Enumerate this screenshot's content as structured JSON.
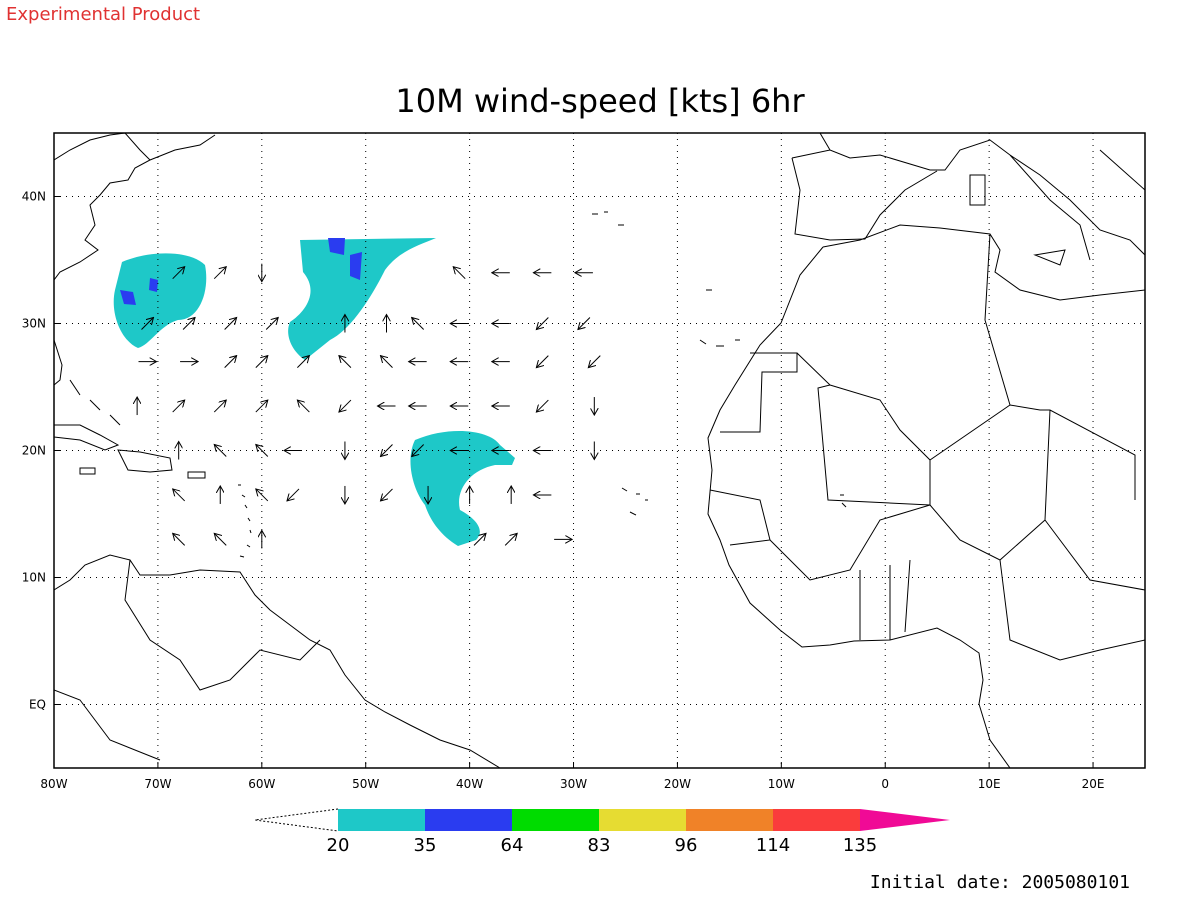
{
  "header": "Experimental Product",
  "title": "10M wind-speed [kts] 6hr",
  "footer": "Initial date: 2005080101",
  "map": {
    "xlim": [
      -80,
      25
    ],
    "ylim": [
      -5,
      45
    ],
    "xticks": [
      {
        "value": -80,
        "label": "80W"
      },
      {
        "value": -70,
        "label": "70W"
      },
      {
        "value": -60,
        "label": "60W"
      },
      {
        "value": -50,
        "label": "50W"
      },
      {
        "value": -40,
        "label": "40W"
      },
      {
        "value": -30,
        "label": "30W"
      },
      {
        "value": -20,
        "label": "20W"
      },
      {
        "value": -10,
        "label": "10W"
      },
      0,
      {
        "value": 10,
        "label": "10E"
      },
      {
        "value": 20,
        "label": "20E"
      }
    ],
    "yticks": [
      {
        "value": 0,
        "label": "EQ"
      },
      {
        "value": 10,
        "label": "10N"
      },
      {
        "value": 20,
        "label": "20N"
      },
      {
        "value": 30,
        "label": "30N"
      },
      {
        "value": 40,
        "label": "40N"
      }
    ],
    "grid": true,
    "wind_vectors": [
      [
        -68,
        34,
        10,
        10
      ],
      [
        -64,
        34,
        10,
        10
      ],
      [
        -60,
        34,
        0,
        -15
      ],
      [
        -41,
        34,
        -10,
        10
      ],
      [
        -37,
        34,
        -15,
        0
      ],
      [
        -33,
        34,
        -15,
        0
      ],
      [
        -29,
        34,
        -15,
        0
      ],
      [
        -71,
        30,
        10,
        10
      ],
      [
        -67,
        30,
        10,
        10
      ],
      [
        -63,
        30,
        10,
        10
      ],
      [
        -59,
        30,
        10,
        10
      ],
      [
        -52,
        30,
        0,
        15
      ],
      [
        -48,
        30,
        0,
        15
      ],
      [
        -45,
        30,
        -10,
        10
      ],
      [
        -41,
        30,
        -15,
        0
      ],
      [
        -37,
        30,
        -15,
        0
      ],
      [
        -33,
        30,
        -10,
        -10
      ],
      [
        -29,
        30,
        -10,
        -10
      ],
      [
        -71,
        27,
        15,
        0
      ],
      [
        -67,
        27,
        15,
        0
      ],
      [
        -63,
        27,
        10,
        10
      ],
      [
        -60,
        27,
        10,
        10
      ],
      [
        -56,
        27,
        10,
        10
      ],
      [
        -52,
        27,
        -10,
        10
      ],
      [
        -48,
        27,
        -10,
        10
      ],
      [
        -45,
        27,
        -15,
        0
      ],
      [
        -41,
        27,
        -15,
        0
      ],
      [
        -37,
        27,
        -15,
        0
      ],
      [
        -33,
        27,
        -10,
        -10
      ],
      [
        -28,
        27,
        -10,
        -10
      ],
      [
        -72,
        23.5,
        0,
        15
      ],
      [
        -68,
        23.5,
        10,
        10
      ],
      [
        -64,
        23.5,
        10,
        10
      ],
      [
        -60,
        23.5,
        10,
        10
      ],
      [
        -56,
        23.5,
        -10,
        10
      ],
      [
        -52,
        23.5,
        -10,
        -10
      ],
      [
        -48,
        23.5,
        -15,
        0
      ],
      [
        -45,
        23.5,
        -15,
        0
      ],
      [
        -41,
        23.5,
        -15,
        0
      ],
      [
        -37,
        23.5,
        -15,
        0
      ],
      [
        -33,
        23.5,
        -10,
        -10
      ],
      [
        -28,
        23.5,
        0,
        -15
      ],
      [
        -68,
        20,
        0,
        15
      ],
      [
        -64,
        20,
        -10,
        10
      ],
      [
        -60,
        20,
        -10,
        10
      ],
      [
        -57,
        20,
        -15,
        0
      ],
      [
        -52,
        20,
        0,
        -15
      ],
      [
        -48,
        20,
        -10,
        -10
      ],
      [
        -45,
        20,
        -10,
        -10
      ],
      [
        -41,
        20,
        -15,
        0
      ],
      [
        -37,
        20,
        -15,
        0
      ],
      [
        -33,
        20,
        -15,
        0
      ],
      [
        -28,
        20,
        0,
        -15
      ],
      [
        -68,
        16.5,
        -10,
        10
      ],
      [
        -64,
        16.5,
        0,
        15
      ],
      [
        -60,
        16.5,
        -10,
        10
      ],
      [
        -57,
        16.5,
        -10,
        -10
      ],
      [
        -52,
        16.5,
        0,
        -15
      ],
      [
        -48,
        16.5,
        -10,
        -10
      ],
      [
        -44,
        16.5,
        0,
        -15
      ],
      [
        -40,
        16.5,
        0,
        15
      ],
      [
        -36,
        16.5,
        0,
        15
      ],
      [
        -33,
        16.5,
        -15,
        0
      ],
      [
        -68,
        13,
        -10,
        10
      ],
      [
        -64,
        13,
        -10,
        10
      ],
      [
        -60,
        13,
        0,
        15
      ],
      [
        -39,
        13,
        10,
        10
      ],
      [
        -36,
        13,
        10,
        10
      ],
      [
        -31,
        13,
        15,
        0
      ]
    ]
  },
  "colorbar": {
    "levels": [
      20,
      35,
      64,
      83,
      96,
      114,
      135
    ],
    "colors": [
      "#1ec8c8",
      "#2a3cf0",
      "#00dc00",
      "#e6dc32",
      "#f08228",
      "#fa3c3c",
      "#f00a96"
    ]
  }
}
